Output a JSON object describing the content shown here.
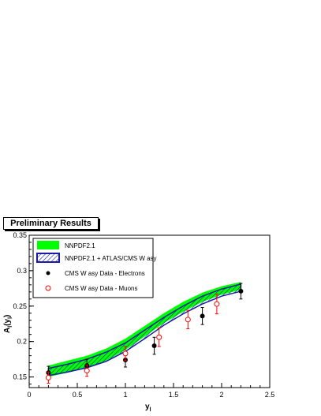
{
  "banner": {
    "text": "Preliminary Results"
  },
  "chart_data": {
    "type": "line",
    "xlabel": "y_l",
    "ylabel": "A_l(y_l)",
    "xlim": [
      0,
      2.5
    ],
    "ylim": [
      0.135,
      0.35
    ],
    "x_ticks": [
      "0",
      "0.5",
      "1",
      "1.5",
      "2",
      "2.5"
    ],
    "y_ticks": [
      "0.15",
      "0.2",
      "0.25",
      "0.3",
      "0.35"
    ],
    "y_tick_values": [
      0.15,
      0.2,
      0.25,
      0.3,
      0.35
    ],
    "x_tick_values": [
      0,
      0.5,
      1,
      1.5,
      2,
      2.5
    ],
    "grid": false,
    "legend_position": "top-left",
    "bands": [
      {
        "name": "NNPDF2.1",
        "color": "#00ff00",
        "x": [
          0.2,
          0.4,
          0.6,
          0.8,
          1.0,
          1.2,
          1.4,
          1.6,
          1.8,
          2.0,
          2.2
        ],
        "lower": [
          0.15,
          0.156,
          0.163,
          0.173,
          0.188,
          0.207,
          0.226,
          0.242,
          0.256,
          0.266,
          0.273
        ],
        "upper": [
          0.166,
          0.173,
          0.18,
          0.19,
          0.204,
          0.222,
          0.24,
          0.256,
          0.269,
          0.278,
          0.284
        ]
      },
      {
        "name": "NNPDF2.1 + ATLAS/CMS W asy",
        "color": "#1a1aa8",
        "x": [
          0.2,
          0.4,
          0.6,
          0.8,
          1.0,
          1.2,
          1.4,
          1.6,
          1.8,
          2.0,
          2.2
        ],
        "lower": [
          0.152,
          0.157,
          0.163,
          0.172,
          0.186,
          0.204,
          0.223,
          0.239,
          0.253,
          0.264,
          0.271
        ],
        "upper": [
          0.162,
          0.168,
          0.175,
          0.185,
          0.198,
          0.216,
          0.234,
          0.25,
          0.264,
          0.274,
          0.281
        ]
      }
    ],
    "series": [
      {
        "name": "CMS W asy Data - Electrons",
        "marker": "filled-circle",
        "color": "#000000",
        "x": [
          0.2,
          0.6,
          1.0,
          1.3,
          1.8,
          2.2
        ],
        "y": [
          0.156,
          0.166,
          0.174,
          0.194,
          0.236,
          0.271
        ],
        "err": [
          0.009,
          0.009,
          0.01,
          0.012,
          0.012,
          0.011
        ]
      },
      {
        "name": "CMS W asy Data - Muons",
        "marker": "open-circle",
        "color": "#ff0000",
        "x": [
          0.2,
          0.6,
          1.0,
          1.35,
          1.65,
          1.95
        ],
        "y": [
          0.149,
          0.159,
          0.183,
          0.206,
          0.231,
          0.253
        ],
        "err": [
          0.008,
          0.008,
          0.01,
          0.013,
          0.013,
          0.014
        ]
      }
    ]
  }
}
